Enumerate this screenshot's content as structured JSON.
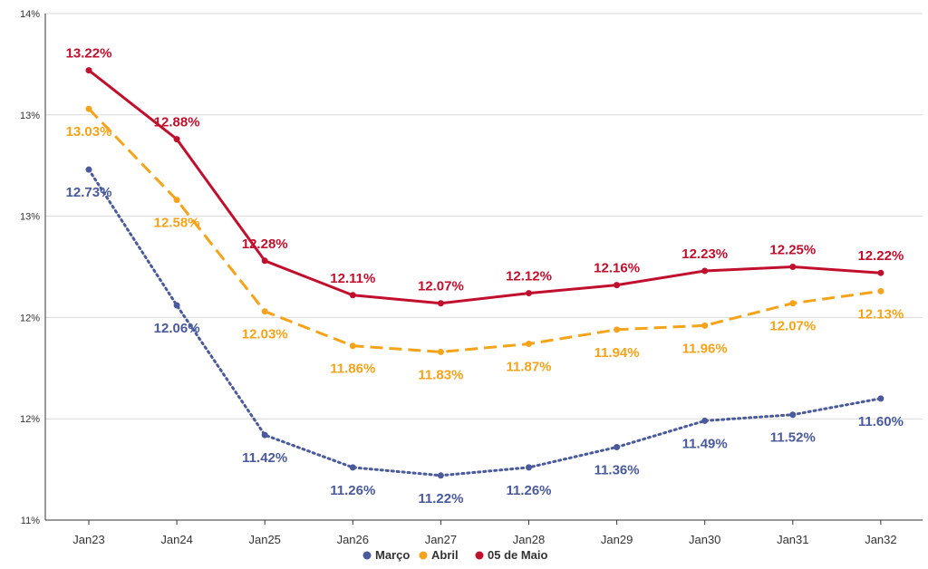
{
  "chart_data": {
    "type": "line",
    "title": "",
    "xlabel": "",
    "ylabel": "",
    "categories": [
      "Jan23",
      "Jan24",
      "Jan25",
      "Jan26",
      "Jan27",
      "Jan28",
      "Jan29",
      "Jan30",
      "Jan31",
      "Jan32"
    ],
    "ylim": [
      11.0,
      13.5
    ],
    "y_ticks": [
      11.0,
      11.5,
      12.0,
      12.5,
      13.0,
      13.5
    ],
    "y_tick_labels": [
      "11%",
      "12%",
      "12%",
      "13%",
      "13%",
      "14%"
    ],
    "grid": true,
    "legend_position": "bottom",
    "series": [
      {
        "name": "Março",
        "color": "#4a5a9a",
        "line_style": "dotted",
        "values": [
          12.73,
          12.06,
          11.42,
          11.26,
          11.22,
          11.26,
          11.36,
          11.49,
          11.52,
          11.6
        ],
        "labels": [
          "12.73%",
          "12.06%",
          "11.42%",
          "11.26%",
          "11.22%",
          "11.26%",
          "11.36%",
          "11.49%",
          "11.52%",
          "11.60%"
        ]
      },
      {
        "name": "Abril",
        "color": "#f5a31a",
        "line_style": "dashed",
        "values": [
          13.03,
          12.58,
          12.03,
          11.86,
          11.83,
          11.87,
          11.94,
          11.96,
          12.07,
          12.13
        ],
        "labels": [
          "13.03%",
          "12.58%",
          "12.03%",
          "11.86%",
          "11.83%",
          "11.87%",
          "11.94%",
          "11.96%",
          "12.07%",
          "12.13%"
        ]
      },
      {
        "name": "05 de Maio",
        "color": "#c0102e",
        "line_style": "solid",
        "values": [
          13.22,
          12.88,
          12.28,
          12.11,
          12.07,
          12.12,
          12.16,
          12.23,
          12.25,
          12.22
        ],
        "labels": [
          "13.22%",
          "12.88%",
          "12.28%",
          "12.11%",
          "12.07%",
          "12.12%",
          "12.16%",
          "12.23%",
          "12.25%",
          "12.22%"
        ]
      }
    ]
  }
}
